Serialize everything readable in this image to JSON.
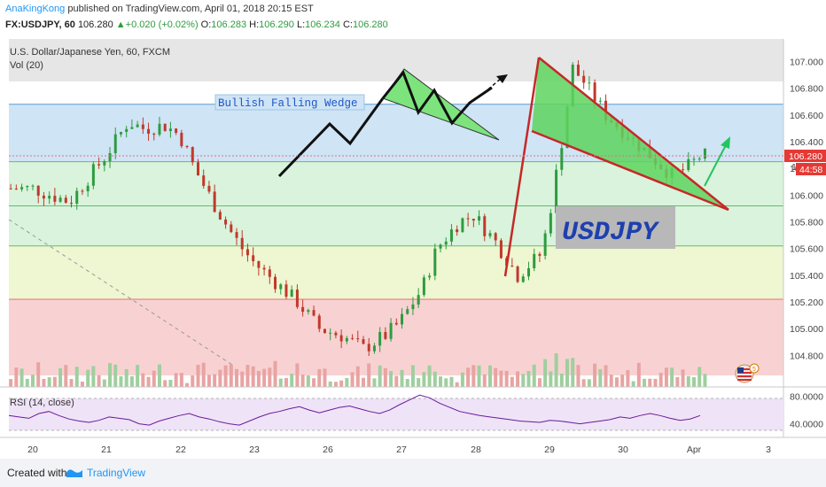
{
  "header": {
    "author": "AnaKingKong",
    "published": " published on TradingView.com, April 01, 2018 20:15 EST",
    "symbol": "FX:USDJPY, 60",
    "last": "106.280",
    "change": "+0.020 (+0.02%)",
    "o_label": "O:",
    "o_value": "106.283",
    "h_label": "H:",
    "h_value": "106.290",
    "l_label": "L:",
    "l_value": "106.234",
    "c_label": "C:",
    "c_value": "106.280"
  },
  "pane": {
    "instrument": "U.S. Dollar/Japanese Yen, 60, FXCM",
    "volume_label": "Vol (20)",
    "rsi_label": "RSI (14, close)"
  },
  "annotations": {
    "wedge_label": "Bullish Falling Wedge",
    "symbol_box": "USDJPY"
  },
  "price_tags": {
    "last": "106.280",
    "countdown": "44:58",
    "hidden": "10"
  },
  "footer": {
    "created": "Created with",
    "brand": "TradingView"
  },
  "colors": {
    "band_blue": "#cfe4f5",
    "band_green": "#d9f3dc",
    "band_yellow": "#eef6d2",
    "band_red": "#f8d2d2",
    "wedge_fill": "#7de37d",
    "wedge_line": "#c62828",
    "bull": "#2e9c3f",
    "bear": "#c0392b",
    "rsi_line": "#6a1b9a",
    "rsi_band": "#efe3f7",
    "link": "#2196f3"
  },
  "chart_data": {
    "type": "candlestick",
    "y_ticks": [
      "107.000",
      "106.800",
      "106.600",
      "106.400",
      "106.200",
      "106.000",
      "105.800",
      "105.600",
      "105.400",
      "105.200",
      "105.000",
      "104.800"
    ],
    "x_ticks": [
      "20",
      "21",
      "22",
      "23",
      "26",
      "27",
      "28",
      "29",
      "30",
      "Apr",
      "3"
    ],
    "ylim": [
      104.65,
      107.05
    ],
    "bands": [
      {
        "from": 106.68,
        "to": 106.25,
        "color": "band_blue"
      },
      {
        "from": 106.25,
        "to": 105.92,
        "color": "band_green"
      },
      {
        "from": 105.92,
        "to": 105.62,
        "color": "band_green"
      },
      {
        "from": 105.62,
        "to": 105.22,
        "color": "band_yellow"
      },
      {
        "from": 105.22,
        "to": 104.65,
        "color": "band_red"
      }
    ],
    "close_path": [
      [
        0,
        106.05
      ],
      [
        0.5,
        105.95
      ],
      [
        1,
        106.3
      ],
      [
        1.3,
        106.55
      ],
      [
        1.5,
        106.5
      ],
      [
        1.8,
        106.52
      ],
      [
        2,
        106.45
      ],
      [
        2.2,
        106.2
      ],
      [
        2.5,
        105.9
      ],
      [
        2.7,
        105.72
      ],
      [
        2.85,
        105.6
      ],
      [
        3,
        105.5
      ],
      [
        3.3,
        105.35
      ],
      [
        3.6,
        105.2
      ],
      [
        3.9,
        105.0
      ],
      [
        4.2,
        104.95
      ],
      [
        4.5,
        104.85
      ],
      [
        4.8,
        104.95
      ],
      [
        5.0,
        105.05
      ],
      [
        5.3,
        105.3
      ],
      [
        5.5,
        105.6
      ],
      [
        5.8,
        105.8
      ],
      [
        6.0,
        105.85
      ],
      [
        6.3,
        105.65
      ],
      [
        6.6,
        105.4
      ],
      [
        6.9,
        105.55
      ],
      [
        7.0,
        105.75
      ],
      [
        7.2,
        106.4
      ],
      [
        7.35,
        106.95
      ],
      [
        7.5,
        106.85
      ],
      [
        7.8,
        106.6
      ],
      [
        8.1,
        106.45
      ],
      [
        8.4,
        106.3
      ],
      [
        8.7,
        106.15
      ],
      [
        8.9,
        106.2
      ],
      [
        9.1,
        106.3
      ],
      [
        9.3,
        106.28
      ]
    ],
    "rsi": {
      "ticks": [
        "80.0000",
        "40.0000"
      ],
      "ylim": [
        20,
        90
      ],
      "levels": [
        70,
        30
      ],
      "values": [
        52,
        50,
        48,
        55,
        58,
        52,
        47,
        44,
        42,
        45,
        50,
        48,
        46,
        40,
        38,
        44,
        48,
        52,
        55,
        50,
        47,
        43,
        40,
        38,
        44,
        50,
        55,
        58,
        62,
        65,
        60,
        56,
        60,
        64,
        66,
        62,
        58,
        55,
        60,
        68,
        75,
        82,
        78,
        70,
        64,
        58,
        55,
        52,
        50,
        48,
        46,
        44,
        43,
        42,
        45,
        44,
        42,
        40,
        42,
        44,
        46,
        50,
        48,
        52,
        55,
        52,
        48,
        45,
        47,
        52
      ]
    }
  }
}
